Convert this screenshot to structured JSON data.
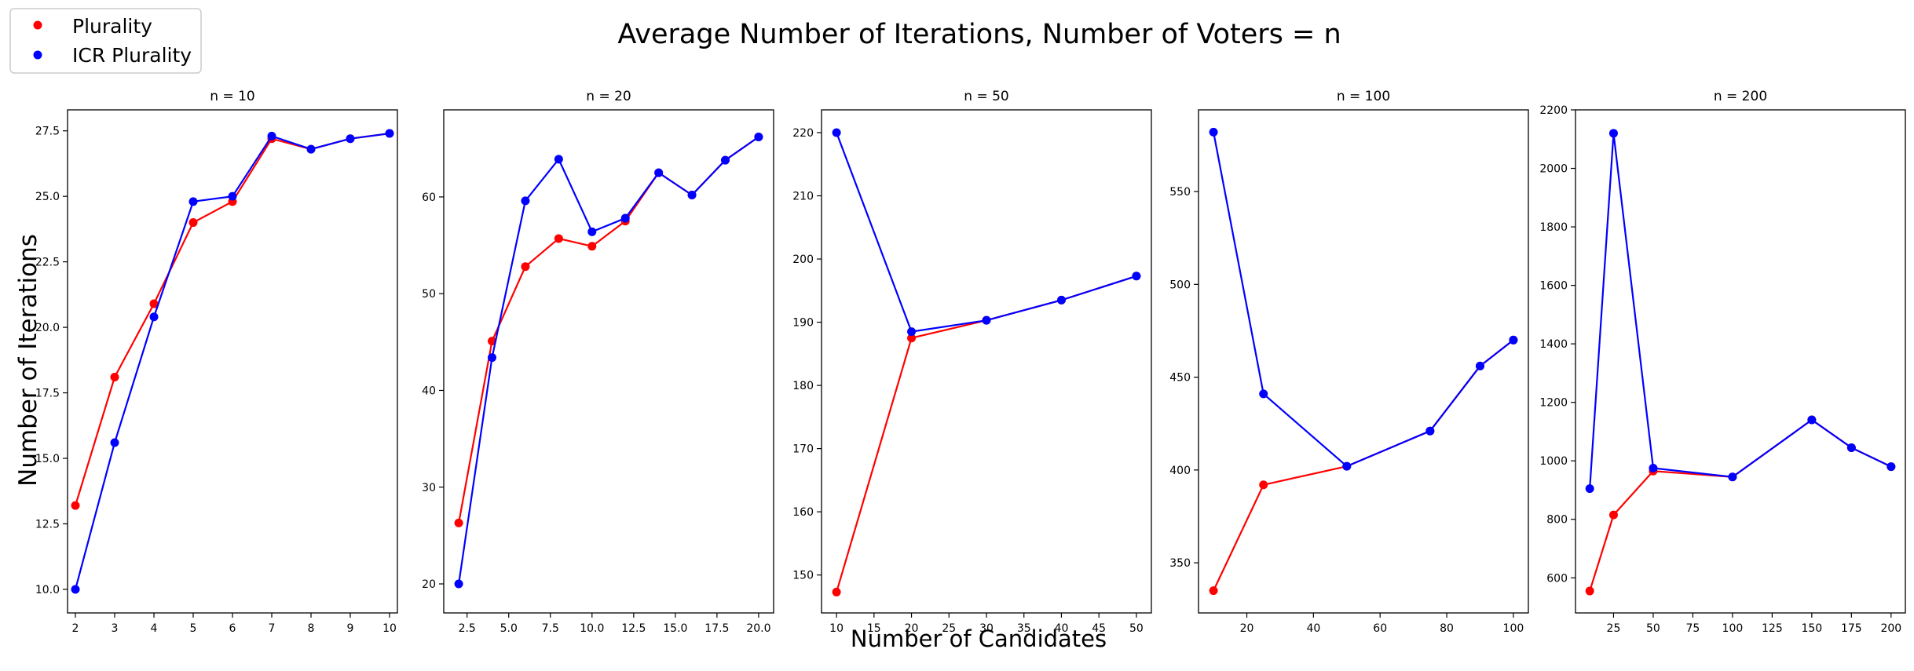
{
  "figure": {
    "title": "Average Number of Iterations, Number of Voters = n",
    "xlabel": "Number of Candidates",
    "ylabel": "Number of Iterations",
    "legend_placement": "top-left",
    "legend": [
      {
        "label": "Plurality",
        "color": "#ff0000"
      },
      {
        "label": "ICR Plurality",
        "color": "#0000ff"
      }
    ]
  },
  "chart_data": [
    {
      "type": "line",
      "title": "n = 10",
      "xlim": [
        1.8,
        10.2
      ],
      "ylim": [
        9.1,
        28.3
      ],
      "xticks": [
        2,
        3,
        4,
        5,
        6,
        7,
        8,
        9,
        10
      ],
      "xtick_labels": [
        "2",
        "3",
        "4",
        "5",
        "6",
        "7",
        "8",
        "9",
        "10"
      ],
      "yticks": [
        10.0,
        12.5,
        15.0,
        17.5,
        20.0,
        22.5,
        25.0,
        27.5
      ],
      "ytick_labels": [
        "10.0",
        "12.5",
        "15.0",
        "17.5",
        "20.0",
        "22.5",
        "25.0",
        "27.5"
      ],
      "grid": false,
      "series": [
        {
          "name": "Plurality",
          "color": "#ff0000",
          "x": [
            2,
            3,
            4,
            5,
            6,
            7,
            8,
            9,
            10
          ],
          "y": [
            13.2,
            18.1,
            20.9,
            24.0,
            24.8,
            27.2,
            26.8,
            27.2,
            27.4
          ]
        },
        {
          "name": "ICR Plurality",
          "color": "#0000ff",
          "x": [
            2,
            3,
            4,
            5,
            6,
            7,
            8,
            9,
            10
          ],
          "y": [
            10.0,
            15.6,
            20.4,
            24.8,
            25.0,
            27.3,
            26.8,
            27.2,
            27.4
          ]
        }
      ]
    },
    {
      "type": "line",
      "title": "n = 20",
      "xlim": [
        1.1,
        20.9
      ],
      "ylim": [
        17.0,
        69.0
      ],
      "xticks": [
        2.5,
        5.0,
        7.5,
        10.0,
        12.5,
        15.0,
        17.5,
        20.0
      ],
      "xtick_labels": [
        "2.5",
        "5.0",
        "7.5",
        "10.0",
        "12.5",
        "15.0",
        "17.5",
        "20.0"
      ],
      "yticks": [
        20,
        30,
        40,
        50,
        60
      ],
      "ytick_labels": [
        "20",
        "30",
        "40",
        "50",
        "60"
      ],
      "grid": false,
      "series": [
        {
          "name": "Plurality",
          "color": "#ff0000",
          "x": [
            2,
            4,
            6,
            8,
            10,
            12,
            14,
            16,
            18,
            20
          ],
          "y": [
            26.3,
            45.1,
            52.8,
            55.7,
            54.9,
            57.5,
            62.5,
            60.2,
            63.8,
            66.2
          ]
        },
        {
          "name": "ICR Plurality",
          "color": "#0000ff",
          "x": [
            2,
            4,
            6,
            8,
            10,
            12,
            14,
            16,
            18,
            20
          ],
          "y": [
            20.0,
            43.4,
            59.6,
            63.9,
            56.4,
            57.8,
            62.5,
            60.2,
            63.8,
            66.2
          ]
        }
      ]
    },
    {
      "type": "line",
      "title": "n = 50",
      "xlim": [
        8.0,
        52.0
      ],
      "ylim": [
        144.0,
        223.6
      ],
      "xticks": [
        10,
        15,
        20,
        25,
        30,
        35,
        40,
        45,
        50
      ],
      "xtick_labels": [
        "10",
        "15",
        "20",
        "25",
        "30",
        "35",
        "40",
        "45",
        "50"
      ],
      "yticks": [
        150,
        160,
        170,
        180,
        190,
        200,
        210,
        220
      ],
      "ytick_labels": [
        "150",
        "160",
        "170",
        "180",
        "190",
        "200",
        "210",
        "220"
      ],
      "grid": false,
      "series": [
        {
          "name": "Plurality",
          "color": "#ff0000",
          "x": [
            10,
            20,
            30,
            40,
            50
          ],
          "y": [
            147.3,
            187.5,
            190.3,
            193.5,
            197.3
          ]
        },
        {
          "name": "ICR Plurality",
          "color": "#0000ff",
          "x": [
            10,
            20,
            30,
            40,
            50
          ],
          "y": [
            220.0,
            188.5,
            190.3,
            193.5,
            197.3
          ]
        }
      ]
    },
    {
      "type": "line",
      "title": "n = 100",
      "xlim": [
        5.5,
        104.5
      ],
      "ylim": [
        323.0,
        594.0
      ],
      "xticks": [
        20,
        40,
        60,
        80,
        100
      ],
      "xtick_labels": [
        "20",
        "40",
        "60",
        "80",
        "100"
      ],
      "yticks": [
        350,
        400,
        450,
        500,
        550
      ],
      "ytick_labels": [
        "350",
        "400",
        "450",
        "500",
        "550"
      ],
      "grid": false,
      "series": [
        {
          "name": "Plurality",
          "color": "#ff0000",
          "x": [
            10,
            25,
            50,
            75,
            90,
            100
          ],
          "y": [
            335,
            392,
            402,
            421,
            456,
            470
          ]
        },
        {
          "name": "ICR Plurality",
          "color": "#0000ff",
          "x": [
            10,
            25,
            50,
            75,
            90,
            100
          ],
          "y": [
            582,
            441,
            402,
            421,
            456,
            470
          ]
        }
      ]
    },
    {
      "type": "line",
      "title": "n = 200",
      "xlim": [
        1.0,
        209.0
      ],
      "ylim": [
        480.0,
        2200.0
      ],
      "xticks": [
        25,
        50,
        75,
        100,
        125,
        150,
        175,
        200
      ],
      "xtick_labels": [
        "25",
        "50",
        "75",
        "100",
        "125",
        "150",
        "175",
        "200"
      ],
      "yticks": [
        600,
        800,
        1000,
        1200,
        1400,
        1600,
        1800,
        2000,
        2200
      ],
      "ytick_labels": [
        "600",
        "800",
        "1000",
        "1200",
        "1400",
        "1600",
        "1800",
        "2000",
        "2200"
      ],
      "grid": false,
      "series": [
        {
          "name": "Plurality",
          "color": "#ff0000",
          "x": [
            10,
            25,
            50,
            100,
            150,
            175,
            200
          ],
          "y": [
            555,
            815,
            965,
            945,
            1140,
            1045,
            980
          ]
        },
        {
          "name": "ICR Plurality",
          "color": "#0000ff",
          "x": [
            10,
            25,
            50,
            100,
            150,
            175,
            200
          ],
          "y": [
            905,
            2120,
            975,
            945,
            1140,
            1045,
            980
          ]
        }
      ]
    }
  ]
}
